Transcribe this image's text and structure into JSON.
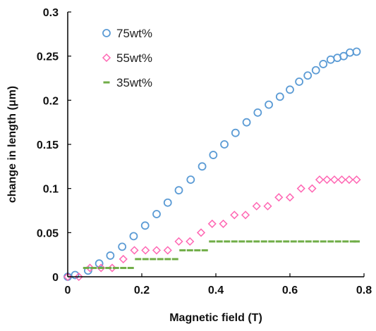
{
  "chart_data": {
    "type": "scatter",
    "xlabel": "Magnetic field (T)",
    "ylabel": "change in length (μm)",
    "xlim": [
      0,
      0.8
    ],
    "ylim": [
      0,
      0.3
    ],
    "xticks": [
      0,
      0.2,
      0.4,
      0.6,
      0.8
    ],
    "xtick_labels": [
      "0",
      "0.2",
      "0.4",
      "0.6",
      "0.8"
    ],
    "yticks": [
      0,
      0.05,
      0.1,
      0.15,
      0.2,
      0.25,
      0.3
    ],
    "ytick_labels": [
      "0",
      "0.05",
      "0.1",
      "0.15",
      "0.2",
      "0.25",
      "0.3"
    ],
    "grid": false,
    "legend_position": "top-left",
    "series": [
      {
        "name": "75wt%",
        "marker": "circle",
        "color": "#5b9bd5",
        "x": [
          0,
          0.02,
          0.055,
          0.085,
          0.115,
          0.147,
          0.178,
          0.209,
          0.24,
          0.27,
          0.3,
          0.332,
          0.363,
          0.393,
          0.423,
          0.453,
          0.483,
          0.513,
          0.543,
          0.573,
          0.6,
          0.625,
          0.648,
          0.67,
          0.69,
          0.71,
          0.728,
          0.745,
          0.762,
          0.78
        ],
        "y": [
          0.0,
          0.002,
          0.007,
          0.015,
          0.024,
          0.034,
          0.046,
          0.058,
          0.071,
          0.084,
          0.098,
          0.11,
          0.125,
          0.138,
          0.15,
          0.163,
          0.175,
          0.186,
          0.195,
          0.204,
          0.212,
          0.221,
          0.228,
          0.234,
          0.241,
          0.246,
          0.248,
          0.25,
          0.254,
          0.255
        ]
      },
      {
        "name": "55wt%",
        "marker": "diamond",
        "color": "#ff66b3",
        "x": [
          0,
          0.03,
          0.06,
          0.09,
          0.12,
          0.15,
          0.18,
          0.21,
          0.24,
          0.27,
          0.3,
          0.33,
          0.36,
          0.39,
          0.42,
          0.45,
          0.48,
          0.51,
          0.54,
          0.57,
          0.6,
          0.63,
          0.66,
          0.68,
          0.7,
          0.72,
          0.74,
          0.76,
          0.78
        ],
        "y": [
          0,
          0,
          0.01,
          0.01,
          0.01,
          0.02,
          0.03,
          0.03,
          0.03,
          0.03,
          0.04,
          0.04,
          0.05,
          0.06,
          0.06,
          0.07,
          0.07,
          0.08,
          0.08,
          0.09,
          0.09,
          0.1,
          0.1,
          0.11,
          0.11,
          0.11,
          0.11,
          0.11,
          0.11
        ]
      },
      {
        "name": "35wt%",
        "marker": "dash",
        "color": "#70ad47",
        "x": [
          0.05,
          0.07,
          0.09,
          0.11,
          0.13,
          0.15,
          0.17,
          0.19,
          0.21,
          0.23,
          0.25,
          0.27,
          0.29,
          0.31,
          0.33,
          0.35,
          0.37,
          0.39,
          0.41,
          0.43,
          0.45,
          0.47,
          0.49,
          0.51,
          0.53,
          0.55,
          0.57,
          0.59,
          0.61,
          0.63,
          0.65,
          0.67,
          0.69,
          0.71,
          0.73,
          0.75,
          0.77,
          0.78
        ],
        "y": [
          0.01,
          0.01,
          0.01,
          0.01,
          0.01,
          0.01,
          0.01,
          0.02,
          0.02,
          0.02,
          0.02,
          0.02,
          0.02,
          0.03,
          0.03,
          0.03,
          0.03,
          0.04,
          0.04,
          0.04,
          0.04,
          0.04,
          0.04,
          0.04,
          0.04,
          0.04,
          0.04,
          0.04,
          0.04,
          0.04,
          0.04,
          0.04,
          0.04,
          0.04,
          0.04,
          0.04,
          0.04,
          0.04
        ]
      }
    ]
  }
}
